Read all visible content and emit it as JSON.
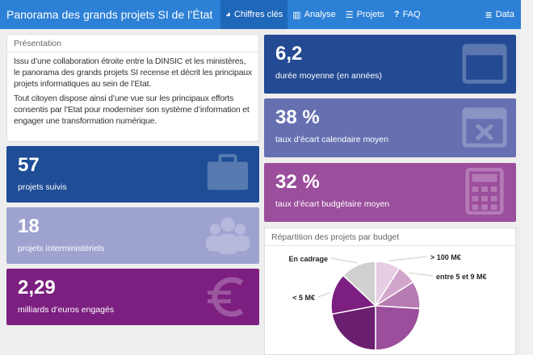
{
  "nav": {
    "title": "Panorama des grands projets SI de l’État",
    "items": [
      {
        "label": "Chiffres clés",
        "icon": "dashboard-icon",
        "active": true
      },
      {
        "label": "Analyse",
        "icon": "bar-chart-icon"
      },
      {
        "label": "Projets",
        "icon": "list-icon"
      },
      {
        "label": "FAQ",
        "icon": "question-icon"
      }
    ],
    "data": "Data"
  },
  "presentation": {
    "title": "Présentation",
    "p1": "Issu d’une collaboration étroite entre la DINSIC et les ministères, le panorama des grands projets SI recense et décrit les principaux projets informatiques au sein de l’Etat.",
    "p2": "Tout citoyen dispose ainsi d’une vue sur les principaux efforts consentis par l’Etat pour moderniser son système d’information et engager une transformation numérique."
  },
  "stats": [
    {
      "value": "57",
      "label": "projets suivis",
      "color": "#1f4d96",
      "icon": "briefcase-icon"
    },
    {
      "value": "18",
      "label": "projets interministériels",
      "color": "#9ea2cf",
      "icon": "users-icon"
    },
    {
      "value": "2,29",
      "label": "milliards d’euros engagés",
      "color": "#7c1f80",
      "icon": "euro-icon"
    },
    {
      "value": "6,2",
      "label": "durée moyenne (en années)",
      "color": "#244a93",
      "icon": "calendar-icon"
    },
    {
      "value": "38 %",
      "label": "taux d’écart calendaire moyen",
      "color": "#6670b1",
      "icon": "calendar-times-icon"
    },
    {
      "value": "32 %",
      "label": "taux d’écart budgétaire moyen",
      "color": "#9b4e9c",
      "icon": "calculator-icon"
    }
  ],
  "chart_data": {
    "type": "pie",
    "title": "Répartition des projets par budget",
    "slices": [
      {
        "label": "> 100 M€",
        "value": 9,
        "color": "#e6cde2"
      },
      {
        "label": "entre 5 et 9 M€",
        "value": 7,
        "color": "#d2a6cc"
      },
      {
        "label": "",
        "value": 10,
        "color": "#b67bb1"
      },
      {
        "label": "",
        "value": 24,
        "color": "#9b4e9c"
      },
      {
        "label": "",
        "value": 22,
        "color": "#6b1f70"
      },
      {
        "label": "< 5 M€",
        "value": 15,
        "color": "#7c1f80"
      },
      {
        "label": "En cadrage",
        "value": 13,
        "color": "#d0d0d0"
      }
    ]
  }
}
